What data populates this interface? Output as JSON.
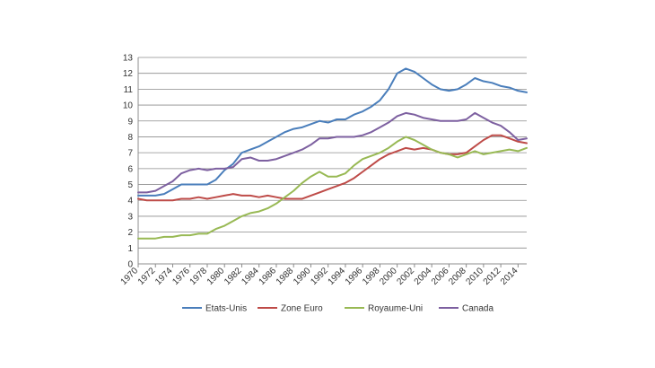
{
  "chart_data": {
    "type": "line",
    "title": "",
    "xlabel": "",
    "ylabel": "",
    "xlim": [
      1970,
      2015
    ],
    "ylim": [
      0,
      13
    ],
    "y_ticks": [
      0,
      1,
      2,
      3,
      4,
      5,
      6,
      7,
      8,
      9,
      10,
      11,
      12,
      13
    ],
    "x_tick_labels": [
      "1970",
      "1972",
      "1974",
      "1976",
      "1978",
      "1980",
      "1982",
      "1984",
      "1986",
      "1988",
      "1990",
      "1992",
      "1994",
      "1996",
      "1998",
      "2000",
      "2002",
      "2004",
      "2006",
      "2008",
      "2010",
      "2012",
      "2014"
    ],
    "grid": "horizontal",
    "legend_position": "bottom",
    "x": [
      1970,
      1971,
      1972,
      1973,
      1974,
      1975,
      1976,
      1977,
      1978,
      1979,
      1980,
      1981,
      1982,
      1983,
      1984,
      1985,
      1986,
      1987,
      1988,
      1989,
      1990,
      1991,
      1992,
      1993,
      1994,
      1995,
      1996,
      1997,
      1998,
      1999,
      2000,
      2001,
      2002,
      2003,
      2004,
      2005,
      2006,
      2007,
      2008,
      2009,
      2010,
      2011,
      2012,
      2013,
      2014,
      2015
    ],
    "series": [
      {
        "name": "Etats-Unis",
        "color": "#4a7ebb",
        "values": [
          4.3,
          4.3,
          4.3,
          4.4,
          4.7,
          5.0,
          5.0,
          5.0,
          5.0,
          5.3,
          5.9,
          6.3,
          7.0,
          7.2,
          7.4,
          7.7,
          8.0,
          8.3,
          8.5,
          8.6,
          8.8,
          9.0,
          8.9,
          9.1,
          9.1,
          9.4,
          9.6,
          9.9,
          10.3,
          11.0,
          12.0,
          12.3,
          12.1,
          11.7,
          11.3,
          11.0,
          10.9,
          11.0,
          11.3,
          11.7,
          11.5,
          11.4,
          11.2,
          11.1,
          10.9,
          10.8
        ]
      },
      {
        "name": "Zone Euro",
        "color": "#be4b48",
        "values": [
          4.1,
          4.0,
          4.0,
          4.0,
          4.0,
          4.1,
          4.1,
          4.2,
          4.1,
          4.2,
          4.3,
          4.4,
          4.3,
          4.3,
          4.2,
          4.3,
          4.2,
          4.1,
          4.1,
          4.1,
          4.3,
          4.5,
          4.7,
          4.9,
          5.1,
          5.4,
          5.8,
          6.2,
          6.6,
          6.9,
          7.1,
          7.3,
          7.2,
          7.3,
          7.2,
          7.0,
          6.9,
          6.9,
          7.0,
          7.4,
          7.8,
          8.1,
          8.1,
          7.9,
          7.7,
          7.6
        ]
      },
      {
        "name": "Royaume-Uni",
        "color": "#98b954",
        "values": [
          1.6,
          1.6,
          1.6,
          1.7,
          1.7,
          1.8,
          1.8,
          1.9,
          1.9,
          2.2,
          2.4,
          2.7,
          3.0,
          3.2,
          3.3,
          3.5,
          3.8,
          4.2,
          4.6,
          5.1,
          5.5,
          5.8,
          5.5,
          5.5,
          5.7,
          6.2,
          6.6,
          6.8,
          7.0,
          7.3,
          7.7,
          8.0,
          7.8,
          7.5,
          7.2,
          7.0,
          6.9,
          6.7,
          6.9,
          7.1,
          6.9,
          7.0,
          7.1,
          7.2,
          7.1,
          7.3
        ]
      },
      {
        "name": "Canada",
        "color": "#7d60a0",
        "values": [
          4.5,
          4.5,
          4.6,
          4.9,
          5.2,
          5.7,
          5.9,
          6.0,
          5.9,
          6.0,
          6.0,
          6.1,
          6.6,
          6.7,
          6.5,
          6.5,
          6.6,
          6.8,
          7.0,
          7.2,
          7.5,
          7.9,
          7.9,
          8.0,
          8.0,
          8.0,
          8.1,
          8.3,
          8.6,
          8.9,
          9.3,
          9.5,
          9.4,
          9.2,
          9.1,
          9.0,
          9.0,
          9.0,
          9.1,
          9.5,
          9.2,
          8.9,
          8.7,
          8.3,
          7.8,
          7.9
        ]
      }
    ]
  }
}
